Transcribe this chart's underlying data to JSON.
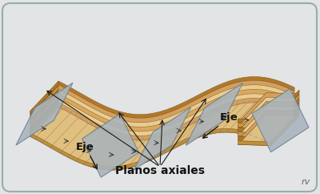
{
  "bg_color": "#e2e4e6",
  "border_color": "#9aabaa",
  "fold_main": "#d4a96a",
  "fold_light": "#e8cc94",
  "fold_dark": "#b07830",
  "fold_side": "#c08840",
  "fold_edge": "#7a5020",
  "stripe_light": "#f0dca0",
  "stripe_dark": "#c8a050",
  "axial_color": "#aab4bc",
  "axial_edge": "#6a8090",
  "axial_shadow": "#888fa0",
  "dashed_color": "#8888aa",
  "arrow_color": "#1a1a1a",
  "text_color": "#111111",
  "label_eje": "Eje",
  "label_planos": "Planos axiales",
  "label_rv": "rv",
  "label_fontsize": 9.5,
  "rv_fontsize": 8
}
